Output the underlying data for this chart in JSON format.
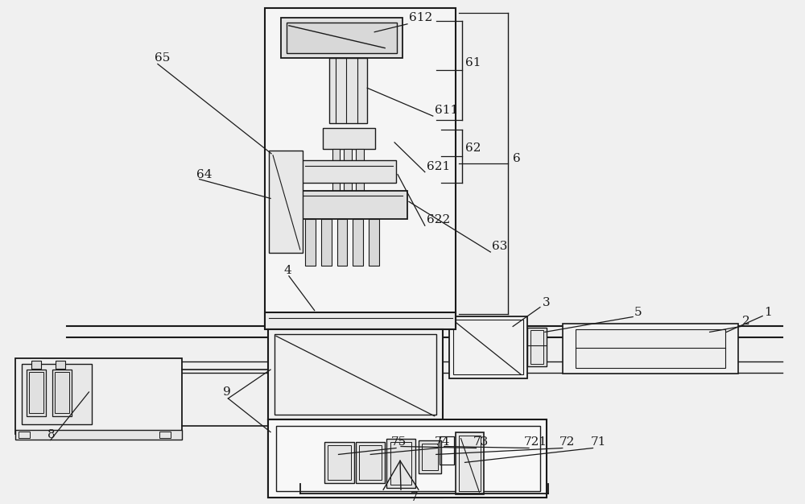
{
  "bg_color": "#f0f0f0",
  "line_color": "#1a1a1a",
  "fs_label": 11
}
